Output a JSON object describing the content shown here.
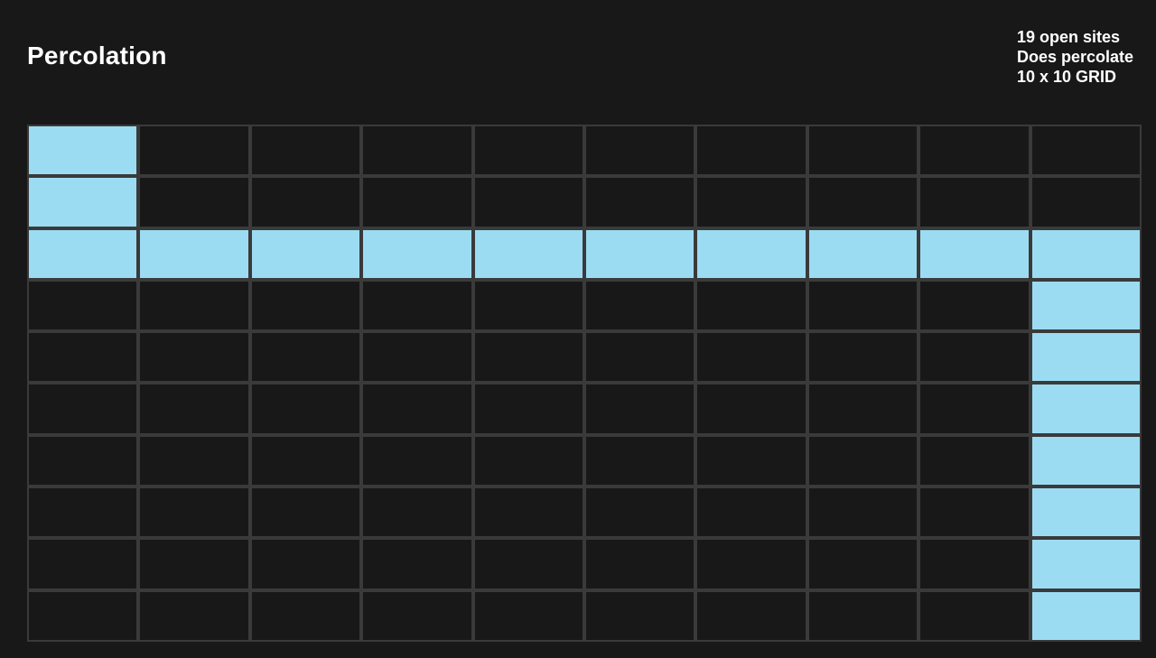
{
  "header": {
    "title": "Percolation"
  },
  "stats": {
    "open_sites": "19 open sites",
    "status": "Does percolate",
    "grid_size": "10 x 10 GRID"
  },
  "grid": {
    "rows": 10,
    "cols": 10,
    "open_color": "#9cdcf3",
    "closed_color": "#181818",
    "cells": [
      [
        1,
        0,
        0,
        0,
        0,
        0,
        0,
        0,
        0,
        0
      ],
      [
        1,
        0,
        0,
        0,
        0,
        0,
        0,
        0,
        0,
        0
      ],
      [
        1,
        1,
        1,
        1,
        1,
        1,
        1,
        1,
        1,
        1
      ],
      [
        0,
        0,
        0,
        0,
        0,
        0,
        0,
        0,
        0,
        1
      ],
      [
        0,
        0,
        0,
        0,
        0,
        0,
        0,
        0,
        0,
        1
      ],
      [
        0,
        0,
        0,
        0,
        0,
        0,
        0,
        0,
        0,
        1
      ],
      [
        0,
        0,
        0,
        0,
        0,
        0,
        0,
        0,
        0,
        1
      ],
      [
        0,
        0,
        0,
        0,
        0,
        0,
        0,
        0,
        0,
        1
      ],
      [
        0,
        0,
        0,
        0,
        0,
        0,
        0,
        0,
        0,
        1
      ],
      [
        0,
        0,
        0,
        0,
        0,
        0,
        0,
        0,
        0,
        1
      ]
    ]
  }
}
